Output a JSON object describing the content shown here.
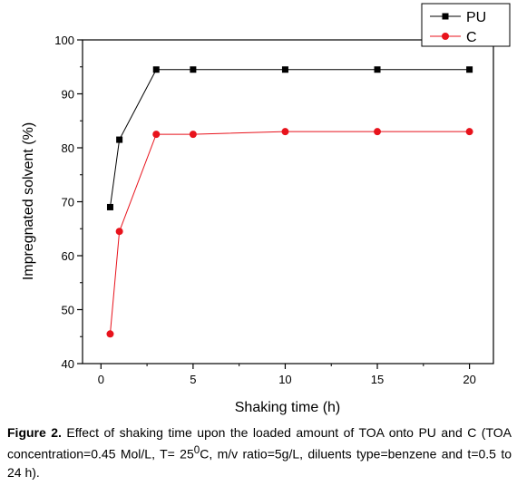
{
  "chart_data": {
    "type": "line",
    "xlabel": "Shaking time (h)",
    "ylabel": "Impregnated solvent (%)",
    "xlim": [
      -1,
      21.3
    ],
    "ylim": [
      40,
      100
    ],
    "x_ticks": [
      0,
      5,
      10,
      15,
      20
    ],
    "x_tick_labels": [
      "0",
      "5",
      "10",
      "15",
      "20"
    ],
    "y_ticks": [
      40,
      50,
      60,
      70,
      80,
      90,
      100
    ],
    "y_tick_labels": [
      "40",
      "50",
      "60",
      "70",
      "80",
      "90",
      "100"
    ],
    "legend_position": "top-right",
    "grid": false,
    "series": [
      {
        "name": "PU",
        "color": "#000000",
        "marker": "square",
        "x": [
          0.5,
          1,
          3,
          5,
          10,
          15,
          20
        ],
        "y": [
          69,
          81.5,
          94.5,
          94.5,
          94.5,
          94.5,
          94.5
        ]
      },
      {
        "name": "C",
        "color": "#e8131c",
        "marker": "circle",
        "x": [
          0.5,
          1,
          3,
          5,
          10,
          15,
          20
        ],
        "y": [
          45.5,
          64.5,
          82.5,
          82.5,
          83,
          83,
          83
        ]
      }
    ]
  },
  "caption": {
    "label": "Figure 2.",
    "text_before_sup": " Effect of shaking time upon the loaded amount of TOA onto PU and C (TOA concentration=0.45 Mol/L, T= 25",
    "sup": "0",
    "text_after_sup": "C, m/v ratio=5g/L, diluents type=benzene and t=0.5 to 24 h)."
  }
}
